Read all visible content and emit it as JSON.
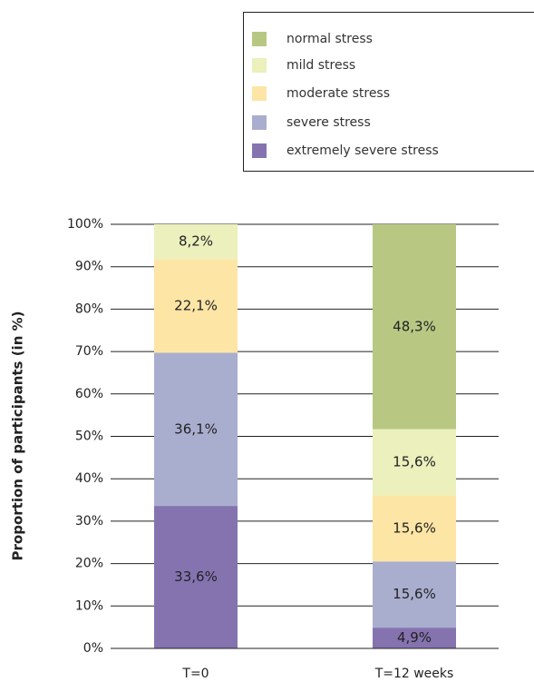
{
  "chart_data": {
    "type": "stacked_bar",
    "ylabel": "Proportion of participants (in %)",
    "categories": [
      "T=0",
      "T=12 weeks"
    ],
    "series": [
      {
        "name": "extremely severe stress",
        "color": "#8573b0",
        "values": [
          33.6,
          4.9
        ],
        "value_labels": [
          "33,6%",
          "4,9%"
        ]
      },
      {
        "name": "severe stress",
        "color": "#a9aecf",
        "values": [
          36.1,
          15.6
        ],
        "value_labels": [
          "36,1%",
          "15,6%"
        ]
      },
      {
        "name": "moderate stress",
        "color": "#fde5a5",
        "values": [
          22.1,
          15.6
        ],
        "value_labels": [
          "22,1%",
          "15,6%"
        ]
      },
      {
        "name": "mild stress",
        "color": "#ebf0bd",
        "values": [
          8.2,
          15.6
        ],
        "value_labels": [
          "8,2%",
          "15,6%"
        ]
      },
      {
        "name": "normal stress",
        "color": "#b8c883",
        "values": [
          0,
          48.3
        ],
        "value_labels": [
          null,
          "48,3%"
        ]
      }
    ],
    "ylim": [
      0,
      100
    ],
    "yticks": [
      {
        "value": 0,
        "label": "0%"
      },
      {
        "value": 10,
        "label": "10%"
      },
      {
        "value": 20,
        "label": "20%"
      },
      {
        "value": 30,
        "label": "30%"
      },
      {
        "value": 40,
        "label": "40%"
      },
      {
        "value": 50,
        "label": "50%"
      },
      {
        "value": 60,
        "label": "60%"
      },
      {
        "value": 70,
        "label": "70%"
      },
      {
        "value": 80,
        "label": "80%"
      },
      {
        "value": 90,
        "label": "90%"
      },
      {
        "value": 100,
        "label": "100%"
      }
    ],
    "grid": true
  }
}
